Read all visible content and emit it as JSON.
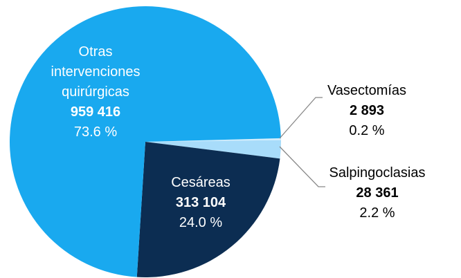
{
  "chart_data": {
    "type": "pie",
    "categories": [
      "Vasectomías",
      "Salpingoclasias",
      "Cesáreas",
      "Otras intervenciones quirúrgicas"
    ],
    "values": [
      2893,
      28361,
      313104,
      959416
    ],
    "value_labels": [
      "2 893",
      "28 361",
      "313 104",
      "959 416"
    ],
    "percentages": [
      0.2,
      2.2,
      24.0,
      73.6
    ],
    "percentage_labels": [
      "0.2 %",
      "2.2 %",
      "24.0 %",
      "73.6 %"
    ],
    "colors": [
      "#d4eefc",
      "#a8dcfa",
      "#0c2d52",
      "#19a9ef"
    ]
  }
}
